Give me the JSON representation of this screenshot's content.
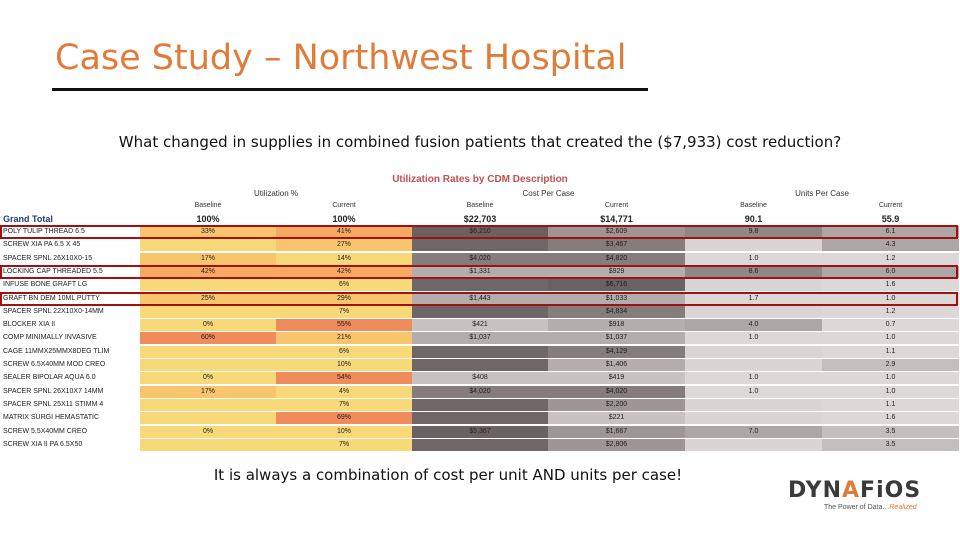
{
  "slide": {
    "title": "Case Study – Northwest Hospital",
    "question": "What changed in supplies in combined fusion patients that created the ($7,933) cost reduction?",
    "footer": "It is always a combination of cost per unit AND units per case!"
  },
  "logo": {
    "brand": "DYNAFiOS",
    "tagline_main": "The Power of Data…",
    "tagline_accent": "Realized"
  },
  "table": {
    "title": "Utilization Rates by CDM Description",
    "groups": [
      "Utilization %",
      "Cost Per Case",
      "Units Per Case"
    ],
    "subheaders": [
      "Baseline",
      "Current",
      "Baseline",
      "Current",
      "Baseline",
      "Current"
    ],
    "grand_total": {
      "label": "Grand Total",
      "values": [
        "100%",
        "100%",
        "$22,703",
        "$14,771",
        "90.1",
        "55.9"
      ]
    },
    "rows": [
      {
        "label": "POLY TULIP THREAD 6.5",
        "values": [
          "33%",
          "41%",
          "$6,210",
          "$2,609",
          "9.8",
          "6.1"
        ],
        "hl": true
      },
      {
        "label": "SCREW XIA PA 6.5 X 45",
        "values": [
          "",
          "27%",
          "",
          "$3,467",
          "",
          "4.3"
        ],
        "hl": false
      },
      {
        "label": "SPACER SPNL 26X10X0-15",
        "values": [
          "17%",
          "14%",
          "$4,020",
          "$4,820",
          "1.0",
          "1.2"
        ],
        "hl": false
      },
      {
        "label": "LOCKING CAP THREADED 5.5",
        "values": [
          "42%",
          "42%",
          "$1,331",
          "$929",
          "8.6",
          "6.0"
        ],
        "hl": true
      },
      {
        "label": "INFUSE BONE GRAFT LG",
        "values": [
          "",
          "6%",
          "",
          "$6,716",
          "",
          "1.6"
        ],
        "hl": false
      },
      {
        "label": "GRAFT BN DEM 10ML PUTTY",
        "values": [
          "25%",
          "29%",
          "$1,443",
          "$1,033",
          "1.7",
          "1.0"
        ],
        "hl": true
      },
      {
        "label": "SPACER SPNL 22X10X0-14MM",
        "values": [
          "",
          "7%",
          "",
          "$4,834",
          "",
          "1.2"
        ],
        "hl": false
      },
      {
        "label": "BLOCKER XIA II",
        "values": [
          "0%",
          "55%",
          "$421",
          "$918",
          "4.0",
          "0.7"
        ],
        "hl": false
      },
      {
        "label": "COMP MINIMALLY INVASIVE",
        "values": [
          "60%",
          "21%",
          "$1,037",
          "$1,037",
          "1.0",
          "1.0"
        ],
        "hl": false
      },
      {
        "label": "CAGE 11MMX25MMX8DEG TLIM",
        "values": [
          "",
          "6%",
          "",
          "$4,129",
          "",
          "1.1"
        ],
        "hl": false
      },
      {
        "label": "SCREW 6.5X40MM MOD CREO",
        "values": [
          "",
          "10%",
          "",
          "$1,406",
          "",
          "2.9"
        ],
        "hl": false
      },
      {
        "label": "SEALER BIPOLAR AQUA 6.0",
        "values": [
          "0%",
          "54%",
          "$408",
          "$419",
          "1.0",
          "1.0"
        ],
        "hl": false
      },
      {
        "label": "SPACER SPNL 26X10X7 14MM",
        "values": [
          "17%",
          "4%",
          "$4,020",
          "$4,020",
          "1.0",
          "1.0"
        ],
        "hl": false
      },
      {
        "label": "SPACER SPNL 25X11 STIMM 4",
        "values": [
          "",
          "7%",
          "",
          "$2,200",
          "",
          "1.1"
        ],
        "hl": false
      },
      {
        "label": "MATRIX SURGI HEMASTATIC",
        "values": [
          "",
          "69%",
          "",
          "$221",
          "",
          "1.6"
        ],
        "hl": false
      },
      {
        "label": "SCREW 5.5X40MM CREO",
        "values": [
          "0%",
          "10%",
          "$5,367",
          "$1,667",
          "7.0",
          "3.5"
        ],
        "hl": false
      },
      {
        "label": "SCREW XIA II PA 6.5X50",
        "values": [
          "",
          "7%",
          "",
          "$2,806",
          "",
          "3.5"
        ],
        "hl": false
      }
    ]
  },
  "colors": {
    "accent": "#e07c3a",
    "highlight_border": "#a11111",
    "grand_total_label": "#1f3d7a",
    "table_title": "#c0504d"
  }
}
